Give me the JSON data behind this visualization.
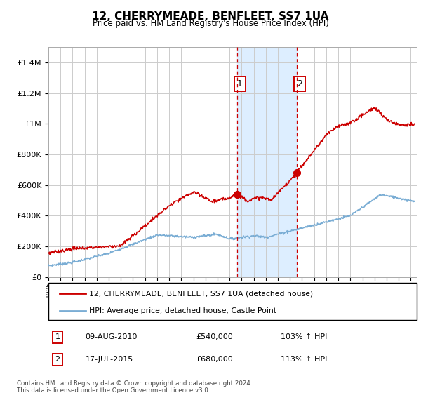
{
  "title": "12, CHERRYMEADE, BENFLEET, SS7 1UA",
  "subtitle": "Price paid vs. HM Land Registry's House Price Index (HPI)",
  "legend_line1": "12, CHERRYMEADE, BENFLEET, SS7 1UA (detached house)",
  "legend_line2": "HPI: Average price, detached house, Castle Point",
  "table_rows": [
    {
      "num": "1",
      "date": "09-AUG-2010",
      "price": "£540,000",
      "hpi": "103% ↑ HPI"
    },
    {
      "num": "2",
      "date": "17-JUL-2015",
      "price": "£680,000",
      "hpi": "113% ↑ HPI"
    }
  ],
  "footer": "Contains HM Land Registry data © Crown copyright and database right 2024.\nThis data is licensed under the Open Government Licence v3.0.",
  "red_color": "#cc0000",
  "blue_color": "#7aadd4",
  "shade_color": "#ddeeff",
  "grid_color": "#cccccc",
  "marker1_x": 2010.6,
  "marker1_y": 540000,
  "marker2_x": 2015.54,
  "marker2_y": 680000,
  "vline1_x": 2010.6,
  "vline2_x": 2015.54,
  "ylim": [
    0,
    1500000
  ],
  "yticks": [
    0,
    200000,
    400000,
    600000,
    800000,
    1000000,
    1200000,
    1400000
  ],
  "xlim": [
    1995.0,
    2025.5
  ]
}
